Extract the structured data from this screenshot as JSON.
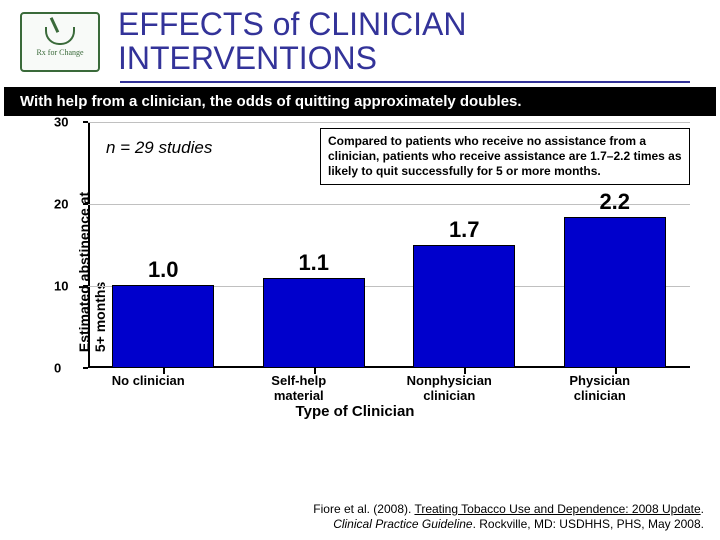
{
  "header": {
    "logo_text": "Rx for Change",
    "title_line1": "EFFECTS of CLINICIAN",
    "title_line2": "INTERVENTIONS",
    "title_color": "#333399"
  },
  "banner": "With help from a clinician, the odds of quitting approximately doubles.",
  "chart": {
    "type": "bar",
    "ylabel_line1": "Estimated abstinence at",
    "ylabel_line2": "5+ months",
    "xlabel": "Type of Clinician",
    "ylim": [
      0,
      30
    ],
    "ytick_step": 10,
    "yticks": [
      0,
      10,
      20,
      30
    ],
    "categories": [
      "No clinician",
      "Self-help material",
      "Nonphysician clinician",
      "Physician clinician"
    ],
    "values": [
      10.2,
      11.0,
      15.0,
      18.5
    ],
    "bar_labels": [
      "1.0",
      "1.1",
      "1.7",
      "2.2"
    ],
    "bar_color": "#0000cc",
    "bar_border": "#000000",
    "grid_color": "#c0c0c0",
    "background_color": "#ffffff",
    "bar_label_fontsize": 22,
    "n_text": "n = 29 studies",
    "explain_text": "Compared to patients who receive no assistance from a clinician, patients who receive assistance are 1.7–2.2 times as likely to quit successfully for 5 or more months."
  },
  "citation": {
    "line1_plain": "Fiore et al. (2008). ",
    "line1_underline": "Treating Tobacco Use and Dependence: 2008 Update",
    "line1_end": ".",
    "line2_italic": "Clinical Practice Guideline",
    "line2_plain": ". Rockville, MD: USDHHS, PHS, May 2008."
  }
}
